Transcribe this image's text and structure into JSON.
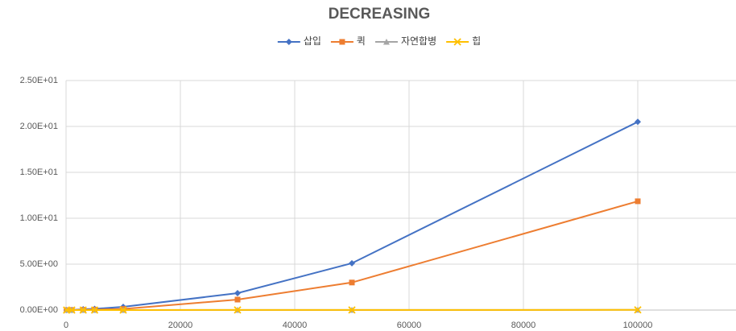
{
  "chart_data": {
    "type": "line",
    "title": "DECREASING",
    "x": [
      100,
      1000,
      3000,
      5000,
      10000,
      30000,
      50000,
      100000
    ],
    "series": [
      {
        "name": "삽입",
        "color": "#4472c4",
        "marker": "diamond",
        "values": [
          0.0,
          0.01,
          0.09,
          0.13,
          0.35,
          1.84,
          5.1,
          20.5
        ]
      },
      {
        "name": "퀵",
        "color": "#ed7d31",
        "marker": "square",
        "values": [
          0.0,
          0.01,
          0.03,
          0.05,
          0.12,
          1.14,
          3.0,
          11.85
        ]
      },
      {
        "name": "자연합병",
        "color": "#a5a5a5",
        "marker": "triangle",
        "values": [
          0.0,
          0.0,
          0.0,
          0.0,
          0.0,
          0.01,
          0.01,
          0.02
        ]
      },
      {
        "name": "힙",
        "color": "#ffc000",
        "marker": "x",
        "values": [
          0.0,
          0.0,
          0.0,
          0.0,
          0.0,
          0.01,
          0.01,
          0.02
        ]
      }
    ],
    "xlim": [
      0,
      120000
    ],
    "xticks": [
      0,
      20000,
      40000,
      60000,
      80000,
      100000,
      120000
    ],
    "ylim": [
      0,
      25
    ],
    "yticks": [
      {
        "value": 0,
        "label": "0.00E+00"
      },
      {
        "value": 5,
        "label": "5.00E+00"
      },
      {
        "value": 10,
        "label": "1.00E+01"
      },
      {
        "value": 15,
        "label": "1.50E+01"
      },
      {
        "value": 20,
        "label": "2.00E+01"
      },
      {
        "value": 25,
        "label": "2.50E+01"
      }
    ],
    "grid": true,
    "legend": "top"
  }
}
